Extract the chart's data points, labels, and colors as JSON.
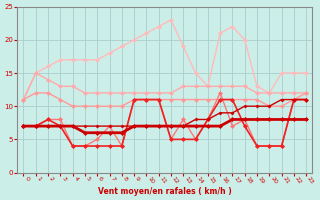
{
  "x": [
    0,
    1,
    2,
    3,
    4,
    5,
    6,
    7,
    8,
    9,
    10,
    11,
    12,
    13,
    14,
    15,
    16,
    17,
    18,
    19,
    20,
    21,
    22,
    23
  ],
  "series": [
    {
      "color": "#ffbbbb",
      "lw": 1.0,
      "marker": "D",
      "ms": 2.0,
      "values": [
        11,
        15,
        16,
        17,
        17,
        17,
        17,
        18,
        19,
        20,
        21,
        22,
        23,
        19,
        15,
        13,
        21,
        22,
        20,
        13,
        12,
        15,
        15,
        15
      ]
    },
    {
      "color": "#ffaaaa",
      "lw": 1.0,
      "marker": "D",
      "ms": 2.0,
      "values": [
        11,
        15,
        14,
        13,
        13,
        12,
        12,
        12,
        12,
        12,
        12,
        12,
        12,
        13,
        13,
        13,
        13,
        13,
        13,
        12,
        12,
        12,
        12,
        12
      ]
    },
    {
      "color": "#ff9999",
      "lw": 1.0,
      "marker": "D",
      "ms": 2.0,
      "values": [
        11,
        12,
        12,
        11,
        10,
        10,
        10,
        10,
        10,
        11,
        11,
        11,
        11,
        11,
        11,
        11,
        11,
        11,
        11,
        11,
        10,
        10,
        11,
        12
      ]
    },
    {
      "color": "#ff7777",
      "lw": 1.0,
      "marker": "D",
      "ms": 2.0,
      "values": [
        7,
        7,
        8,
        8,
        4,
        4,
        5,
        7,
        4,
        11,
        11,
        11,
        5,
        8,
        5,
        8,
        12,
        7,
        8,
        4,
        4,
        4,
        11,
        11
      ]
    },
    {
      "color": "#ee2222",
      "lw": 1.2,
      "marker": "D",
      "ms": 2.0,
      "values": [
        7,
        7,
        8,
        7,
        4,
        4,
        4,
        4,
        4,
        11,
        11,
        11,
        5,
        5,
        5,
        8,
        11,
        11,
        7,
        4,
        4,
        4,
        11,
        11
      ]
    },
    {
      "color": "#cc0000",
      "lw": 2.0,
      "marker": "D",
      "ms": 2.0,
      "values": [
        7,
        7,
        7,
        7,
        7,
        6,
        6,
        6,
        6,
        7,
        7,
        7,
        7,
        7,
        7,
        7,
        7,
        8,
        8,
        8,
        8,
        8,
        8,
        8
      ]
    },
    {
      "color": "#cc0000",
      "lw": 1.0,
      "marker": "D",
      "ms": 1.5,
      "values": [
        7,
        7,
        7,
        7,
        7,
        7,
        7,
        7,
        7,
        7,
        7,
        7,
        7,
        7,
        8,
        8,
        9,
        9,
        10,
        10,
        10,
        11,
        11,
        11
      ]
    }
  ],
  "xlabel": "Vent moyen/en rafales ( km/h )",
  "xlim_min": -0.5,
  "xlim_max": 23.5,
  "ylim": [
    0,
    25
  ],
  "yticks": [
    0,
    5,
    10,
    15,
    20,
    25
  ],
  "xticks": [
    0,
    1,
    2,
    3,
    4,
    5,
    6,
    7,
    8,
    9,
    10,
    11,
    12,
    13,
    14,
    15,
    16,
    17,
    18,
    19,
    20,
    21,
    22,
    23
  ],
  "bg_color": "#cceee8",
  "grid_color": "#aacccc",
  "xlabel_color": "#cc0000",
  "tick_color": "#cc0000",
  "spine_color": "#888888",
  "fig_width": 3.2,
  "fig_height": 2.0,
  "dpi": 100
}
